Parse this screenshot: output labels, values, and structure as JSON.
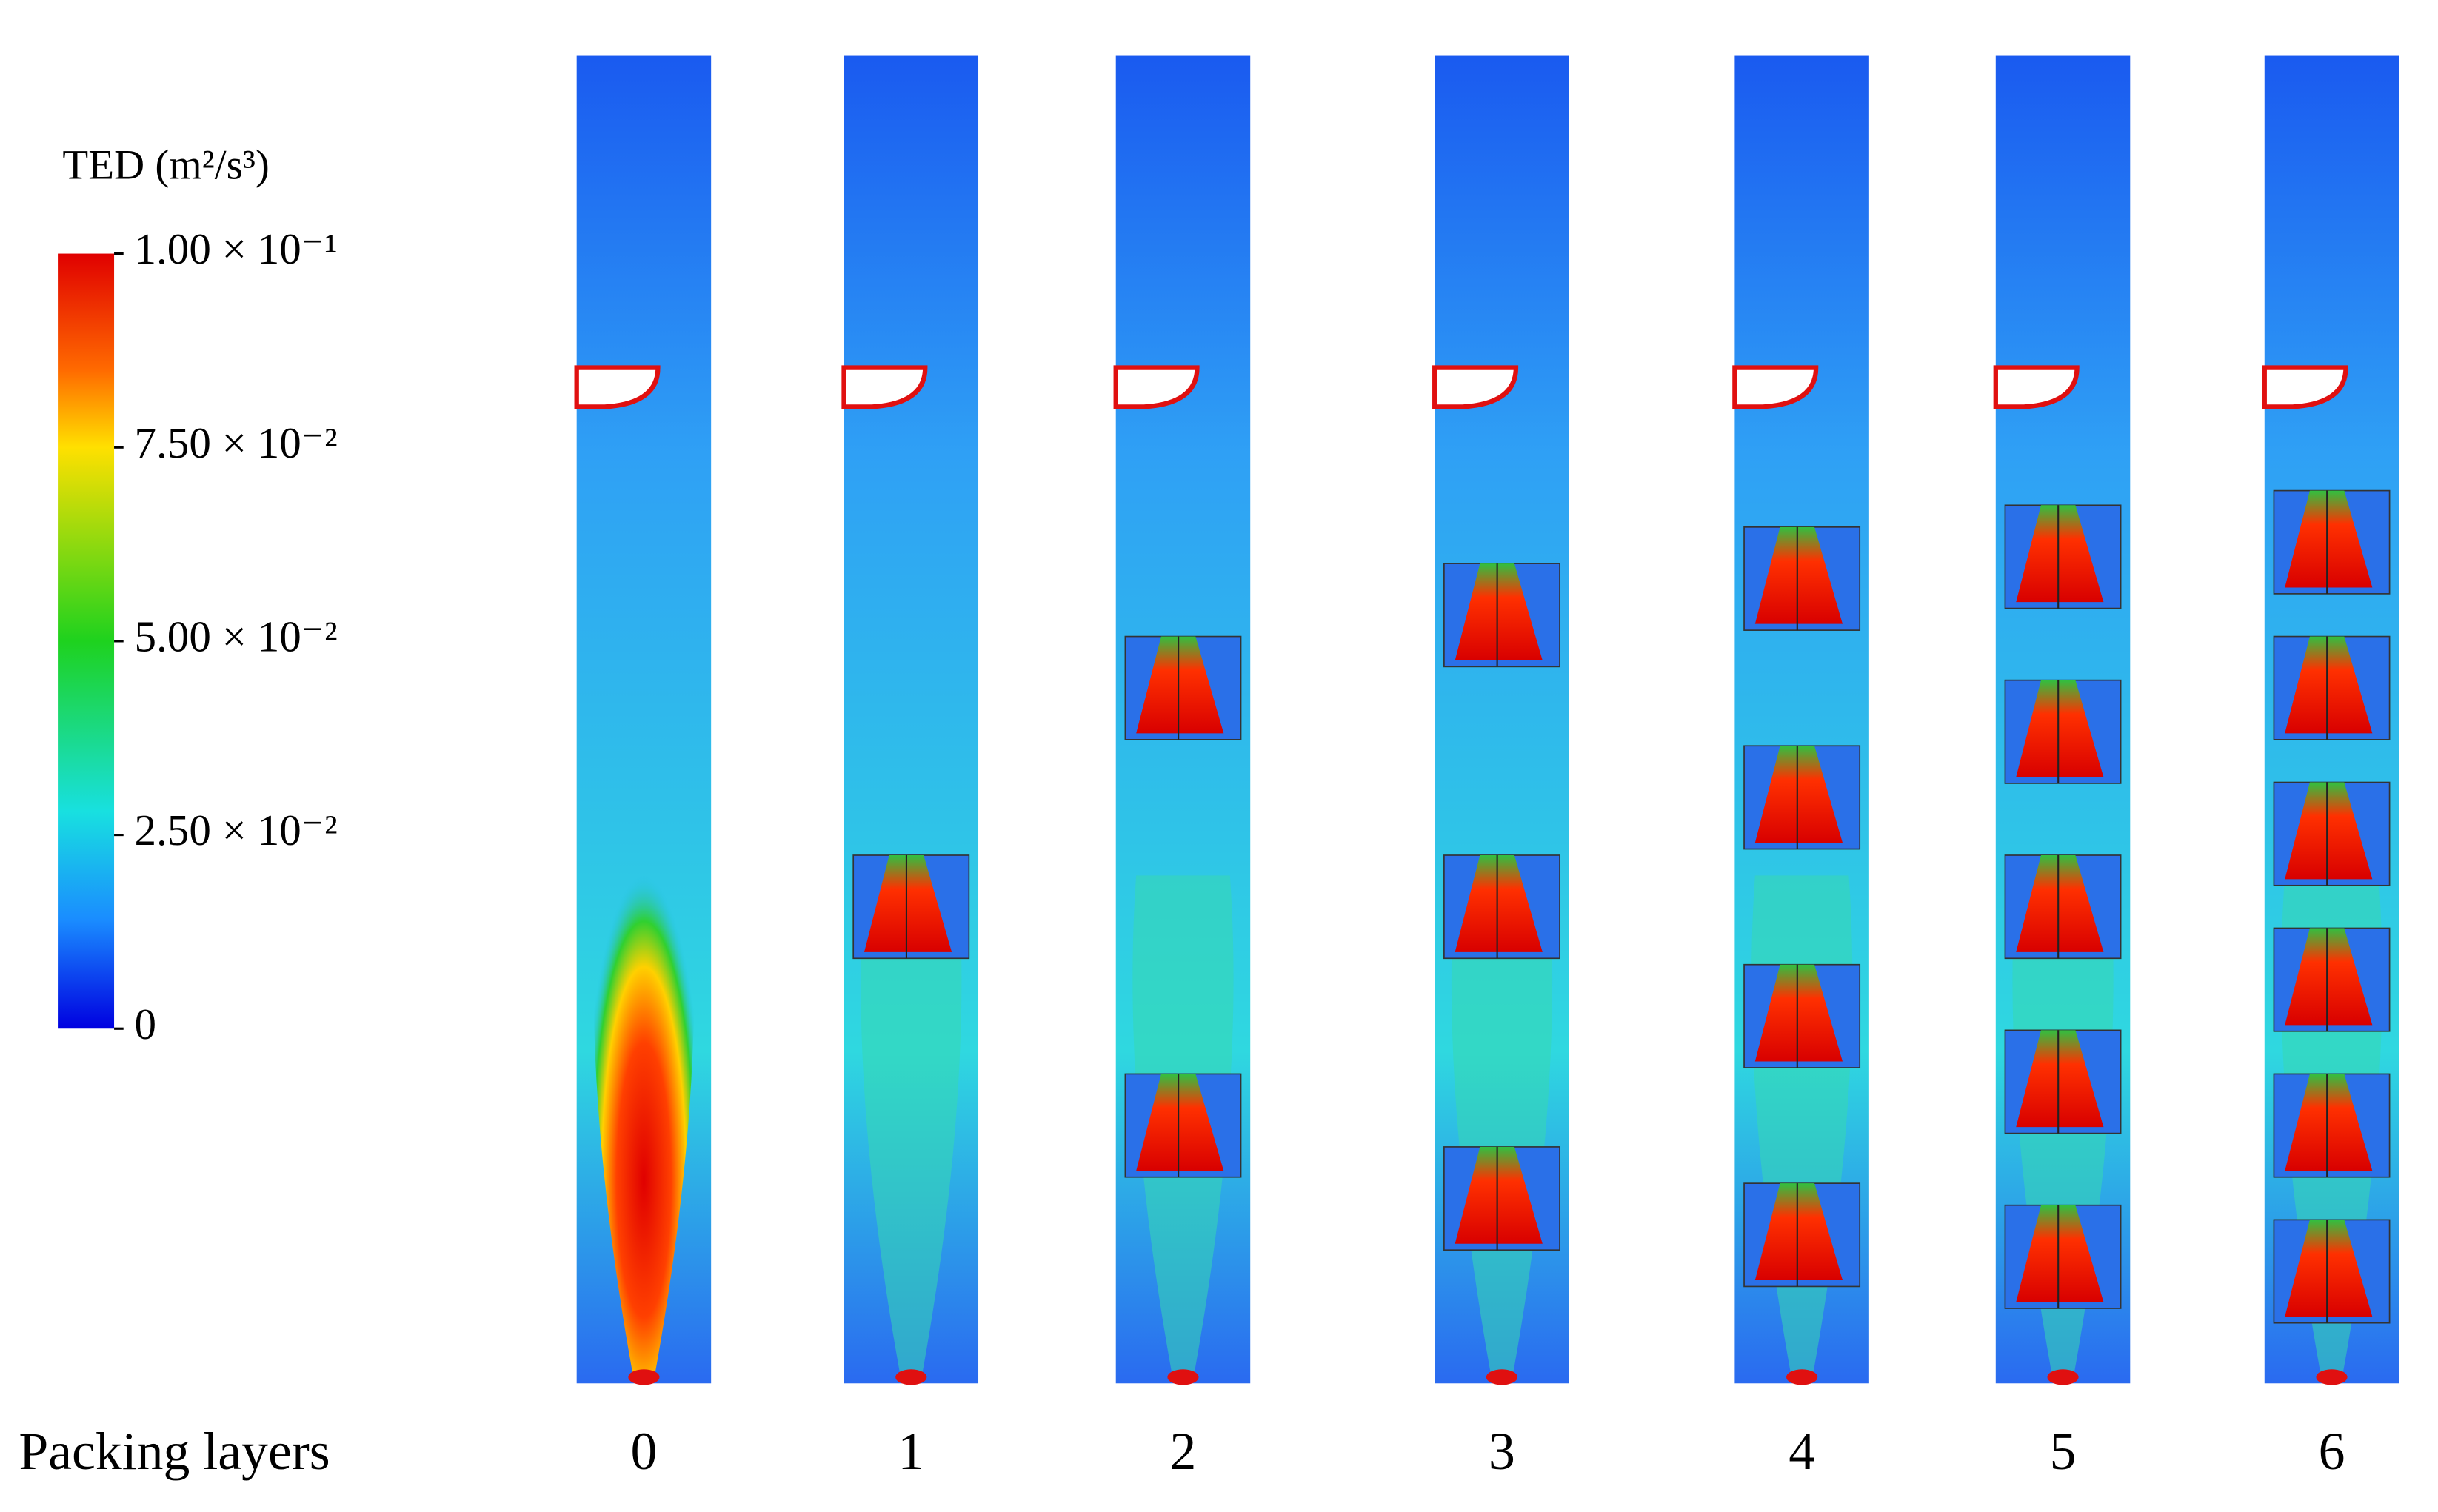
{
  "legend": {
    "title": "TED  (m²/s³)",
    "lim": [
      0,
      0.1
    ],
    "ticks": [
      {
        "value": 0.1,
        "label": "1.00 × 10⁻¹"
      },
      {
        "value": 0.075,
        "label": "7.50 × 10⁻²"
      },
      {
        "value": 0.05,
        "label": "5.00 × 10⁻²"
      },
      {
        "value": 0.025,
        "label": "2.50 × 10⁻²"
      },
      0
    ]
  },
  "x_label": "Packing layers",
  "panels": [
    0,
    1,
    2,
    3,
    4,
    5,
    6
  ]
}
